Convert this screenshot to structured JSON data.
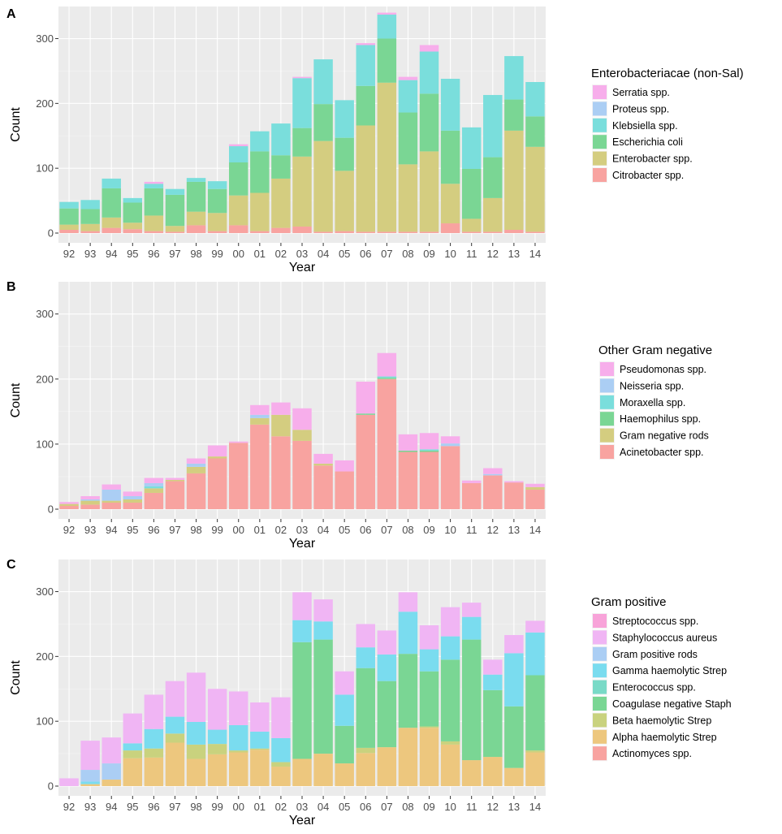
{
  "chart_data": [
    {
      "panel": "A",
      "type": "bar",
      "stacked": true,
      "xlabel": "Year",
      "ylabel": "Count",
      "ylim": [
        0,
        350
      ],
      "yticks": [
        0,
        100,
        200,
        300
      ],
      "categories": [
        "92",
        "93",
        "94",
        "95",
        "96",
        "97",
        "98",
        "99",
        "00",
        "01",
        "02",
        "03",
        "04",
        "05",
        "06",
        "07",
        "08",
        "09",
        "10",
        "11",
        "12",
        "13",
        "14"
      ],
      "legend_title": "Enterobacteriacae (non-Sal)",
      "legend_order": [
        "Serratia spp.",
        "Proteus spp.",
        "Klebsiella spp.",
        "Escherichia coli",
        "Enterobacter spp.",
        "Citrobacter spp."
      ],
      "series": [
        {
          "name": "Citrobacter spp.",
          "color": "#F8A3A0",
          "values": [
            5,
            3,
            8,
            6,
            3,
            2,
            12,
            3,
            12,
            3,
            8,
            10,
            2,
            3,
            2,
            2,
            2,
            2,
            15,
            2,
            2,
            5,
            2
          ]
        },
        {
          "name": "Enterobacter spp.",
          "color": "#D4CD80",
          "values": [
            8,
            11,
            16,
            10,
            24,
            9,
            21,
            28,
            46,
            59,
            76,
            108,
            140,
            93,
            164,
            230,
            104,
            124,
            61,
            20,
            52,
            153,
            131
          ]
        },
        {
          "name": "Escherichia coli",
          "color": "#7AD694",
          "values": [
            25,
            23,
            45,
            31,
            42,
            48,
            46,
            37,
            51,
            64,
            36,
            44,
            57,
            51,
            61,
            68,
            80,
            89,
            82,
            77,
            63,
            48,
            47
          ]
        },
        {
          "name": "Klebsiella spp.",
          "color": "#7ADEDC",
          "values": [
            10,
            14,
            15,
            7,
            7,
            9,
            6,
            12,
            25,
            31,
            49,
            77,
            69,
            58,
            63,
            37,
            50,
            65,
            80,
            64,
            96,
            67,
            53
          ]
        },
        {
          "name": "Proteus spp.",
          "color": "#ABCEF4",
          "values": [
            0,
            0,
            0,
            0,
            0,
            0,
            0,
            0,
            0,
            0,
            0,
            0,
            0,
            0,
            0,
            0,
            0,
            0,
            0,
            0,
            0,
            0,
            0
          ]
        },
        {
          "name": "Serratia spp.",
          "color": "#F7AEEB",
          "values": [
            0,
            0,
            0,
            0,
            3,
            0,
            0,
            0,
            3,
            0,
            0,
            2,
            0,
            0,
            3,
            3,
            5,
            10,
            0,
            0,
            0,
            0,
            0
          ]
        }
      ]
    },
    {
      "panel": "B",
      "type": "bar",
      "stacked": true,
      "xlabel": "Year",
      "ylabel": "Count",
      "ylim": [
        0,
        350
      ],
      "yticks": [
        0,
        100,
        200,
        300
      ],
      "categories": [
        "92",
        "93",
        "94",
        "95",
        "96",
        "97",
        "98",
        "99",
        "00",
        "01",
        "02",
        "03",
        "04",
        "05",
        "06",
        "07",
        "08",
        "09",
        "10",
        "11",
        "12",
        "13",
        "14"
      ],
      "legend_title": "Other Gram negative",
      "legend_order": [
        "Pseudomonas spp.",
        "Neisseria spp.",
        "Moraxella spp.",
        "Haemophilus spp.",
        "Gram negative rods",
        "Acinetobacter spp."
      ],
      "series": [
        {
          "name": "Acinetobacter spp.",
          "color": "#F8A3A0",
          "values": [
            5,
            7,
            10,
            10,
            25,
            43,
            55,
            78,
            102,
            130,
            112,
            105,
            67,
            58,
            145,
            200,
            88,
            88,
            97,
            40,
            52,
            41,
            30
          ]
        },
        {
          "name": "Gram negative rods",
          "color": "#D4CD80",
          "values": [
            3,
            6,
            3,
            5,
            7,
            2,
            10,
            3,
            0,
            10,
            33,
            17,
            3,
            0,
            0,
            0,
            0,
            0,
            0,
            0,
            0,
            0,
            4
          ]
        },
        {
          "name": "Haemophilus spp.",
          "color": "#7AD694",
          "values": [
            0,
            0,
            0,
            0,
            0,
            0,
            0,
            0,
            0,
            0,
            0,
            0,
            0,
            0,
            2,
            2,
            2,
            2,
            0,
            0,
            0,
            0,
            0
          ]
        },
        {
          "name": "Moraxella spp.",
          "color": "#7ADEDC",
          "values": [
            0,
            0,
            0,
            0,
            3,
            0,
            0,
            0,
            0,
            0,
            0,
            0,
            0,
            0,
            0,
            2,
            0,
            2,
            0,
            0,
            0,
            0,
            0
          ]
        },
        {
          "name": "Neisseria spp.",
          "color": "#ABCEF4",
          "values": [
            0,
            2,
            17,
            5,
            5,
            0,
            5,
            0,
            0,
            5,
            0,
            0,
            0,
            0,
            0,
            0,
            0,
            0,
            4,
            0,
            2,
            0,
            0
          ]
        },
        {
          "name": "Pseudomonas spp.",
          "color": "#F7AEEB",
          "values": [
            3,
            5,
            8,
            7,
            8,
            3,
            8,
            17,
            2,
            15,
            19,
            33,
            15,
            17,
            49,
            36,
            25,
            25,
            11,
            4,
            9,
            2,
            5
          ]
        }
      ]
    },
    {
      "panel": "C",
      "type": "bar",
      "stacked": true,
      "xlabel": "Year",
      "ylabel": "Count",
      "ylim": [
        0,
        350
      ],
      "yticks": [
        0,
        100,
        200,
        300
      ],
      "categories": [
        "92",
        "93",
        "94",
        "95",
        "96",
        "97",
        "98",
        "99",
        "00",
        "01",
        "02",
        "03",
        "04",
        "05",
        "06",
        "07",
        "08",
        "09",
        "10",
        "11",
        "12",
        "13",
        "14"
      ],
      "legend_title": "Gram positive",
      "legend_order": [
        "Streptococcus spp.",
        "Staphylococcus aureus",
        "Gram positive rods",
        "Gamma haemolytic Strep",
        "Enterococcus spp.",
        "Coagulase negative Staph",
        "Beta haemolytic Strep",
        "Alpha haemolytic Strep",
        "Actinomyces spp."
      ],
      "series": [
        {
          "name": "Actinomyces spp.",
          "color": "#F8A3A0",
          "values": [
            0,
            0,
            0,
            0,
            0,
            0,
            0,
            0,
            0,
            0,
            0,
            0,
            0,
            0,
            0,
            0,
            0,
            0,
            0,
            0,
            0,
            0,
            0
          ]
        },
        {
          "name": "Alpha haemolytic Strep",
          "color": "#EDC77E",
          "values": [
            0,
            3,
            10,
            43,
            44,
            67,
            42,
            49,
            52,
            56,
            30,
            42,
            50,
            35,
            51,
            60,
            90,
            90,
            64,
            40,
            45,
            28,
            52
          ]
        },
        {
          "name": "Beta haemolytic Strep",
          "color": "#C9D27E",
          "values": [
            0,
            0,
            0,
            12,
            14,
            14,
            22,
            16,
            3,
            2,
            7,
            0,
            0,
            0,
            8,
            0,
            0,
            2,
            5,
            0,
            0,
            0,
            3
          ]
        },
        {
          "name": "Coagulase negative Staph",
          "color": "#7AD694",
          "values": [
            0,
            0,
            0,
            0,
            0,
            0,
            0,
            0,
            0,
            0,
            0,
            180,
            176,
            58,
            123,
            102,
            114,
            85,
            126,
            186,
            103,
            95,
            116
          ]
        },
        {
          "name": "Enterococcus spp.",
          "color": "#79DAC7",
          "values": [
            0,
            0,
            0,
            0,
            0,
            0,
            0,
            0,
            0,
            0,
            0,
            0,
            0,
            0,
            0,
            0,
            0,
            0,
            0,
            0,
            0,
            0,
            0
          ]
        },
        {
          "name": "Gamma haemolytic Strep",
          "color": "#7ADCEF",
          "values": [
            0,
            4,
            0,
            11,
            30,
            26,
            35,
            22,
            39,
            26,
            37,
            34,
            28,
            48,
            32,
            41,
            65,
            34,
            36,
            35,
            24,
            82,
            66
          ]
        },
        {
          "name": "Gram positive rods",
          "color": "#ABCEF4",
          "values": [
            0,
            18,
            25,
            0,
            0,
            0,
            0,
            0,
            0,
            0,
            0,
            0,
            0,
            0,
            0,
            0,
            0,
            0,
            0,
            0,
            0,
            0,
            0
          ]
        },
        {
          "name": "Staphylococcus aureus",
          "color": "#F0B5F4",
          "values": [
            12,
            45,
            40,
            46,
            53,
            55,
            76,
            63,
            52,
            45,
            63,
            43,
            34,
            36,
            36,
            37,
            30,
            37,
            45,
            22,
            23,
            28,
            18
          ]
        },
        {
          "name": "Streptococcus spp.",
          "color": "#F8A3D9",
          "values": [
            0,
            0,
            0,
            0,
            0,
            0,
            0,
            0,
            0,
            0,
            0,
            0,
            0,
            0,
            0,
            0,
            0,
            0,
            0,
            0,
            0,
            0,
            0
          ]
        }
      ]
    }
  ]
}
